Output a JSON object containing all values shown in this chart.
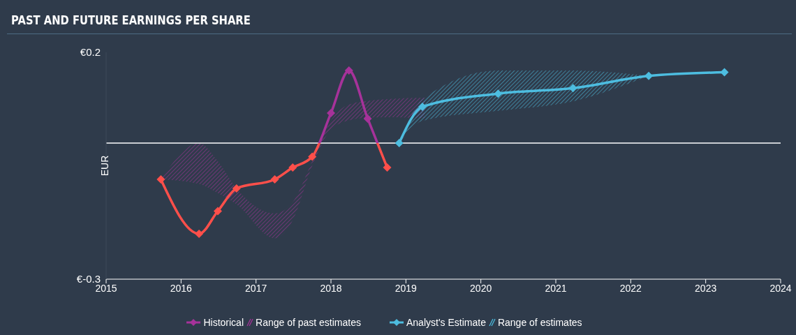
{
  "chart_data": {
    "type": "line",
    "title": "PAST AND FUTURE EARNINGS PER SHARE",
    "ylabel": "EUR",
    "xlim": [
      2015,
      2024
    ],
    "xticks": [
      2015,
      2016,
      2017,
      2018,
      2019,
      2020,
      2021,
      2022,
      2023,
      2024
    ],
    "ylim": [
      -0.3,
      0.2
    ],
    "yticks": [
      {
        "value": -0.3,
        "label": "€-0.3"
      },
      {
        "value": 0.2,
        "label": "€0.2"
      }
    ],
    "grid": false,
    "legend": "bottom",
    "marker": "diamond",
    "line_style": "solid",
    "annotations": [
      "Range of past estimates",
      "Range of estimates"
    ],
    "ref_lines": [
      {
        "axis": "y",
        "value": 0,
        "color": "#ffffff"
      }
    ],
    "series": [
      {
        "name": "Historical",
        "type": "line",
        "color": "#a6329a",
        "x": [
          2015.73,
          2016.24,
          2016.49,
          2016.74,
          2017.25,
          2017.49,
          2017.75,
          2018.0,
          2018.24,
          2018.49,
          2018.75,
          2019.25
        ],
        "values": [
          -0.08,
          -0.2,
          -0.15,
          -0.1,
          -0.08,
          -0.054,
          -0.03,
          0.066,
          0.16,
          0.054,
          -0.054,
          null
        ],
        "colors": [
          "#ff4f4a",
          "#ff4f4a",
          "#ff4f4a",
          "#ff4f4a",
          "#ff4f4a",
          "#ff4f4a",
          "#ff4f4a",
          "#a6329a",
          "#a6329a",
          "#a6329a",
          "#ff4f4a",
          "#a6329a"
        ],
        "lower": [
          -0.08,
          -0.09,
          -0.11,
          -0.135,
          -0.21,
          -0.17,
          -0.05,
          0.03,
          0.05,
          0.056,
          0.057,
          0.055
        ],
        "upper": [
          -0.08,
          0.0,
          -0.04,
          -0.1,
          -0.155,
          -0.13,
          -0.04,
          0.05,
          0.085,
          0.093,
          0.097,
          0.1
        ]
      },
      {
        "name": "Analyst's Estimate",
        "type": "line",
        "color": "#4dbde0",
        "x": [
          2018.91,
          2019.22,
          2020.23,
          2021.23,
          2022.24,
          2023.25
        ],
        "values": [
          0.0,
          0.08,
          0.109,
          0.121,
          0.148,
          0.156
        ],
        "lower": [
          0.0,
          0.049,
          0.071,
          0.092,
          0.148,
          null
        ],
        "upper": [
          0.0,
          0.096,
          0.16,
          0.16,
          0.148,
          null
        ]
      }
    ]
  }
}
